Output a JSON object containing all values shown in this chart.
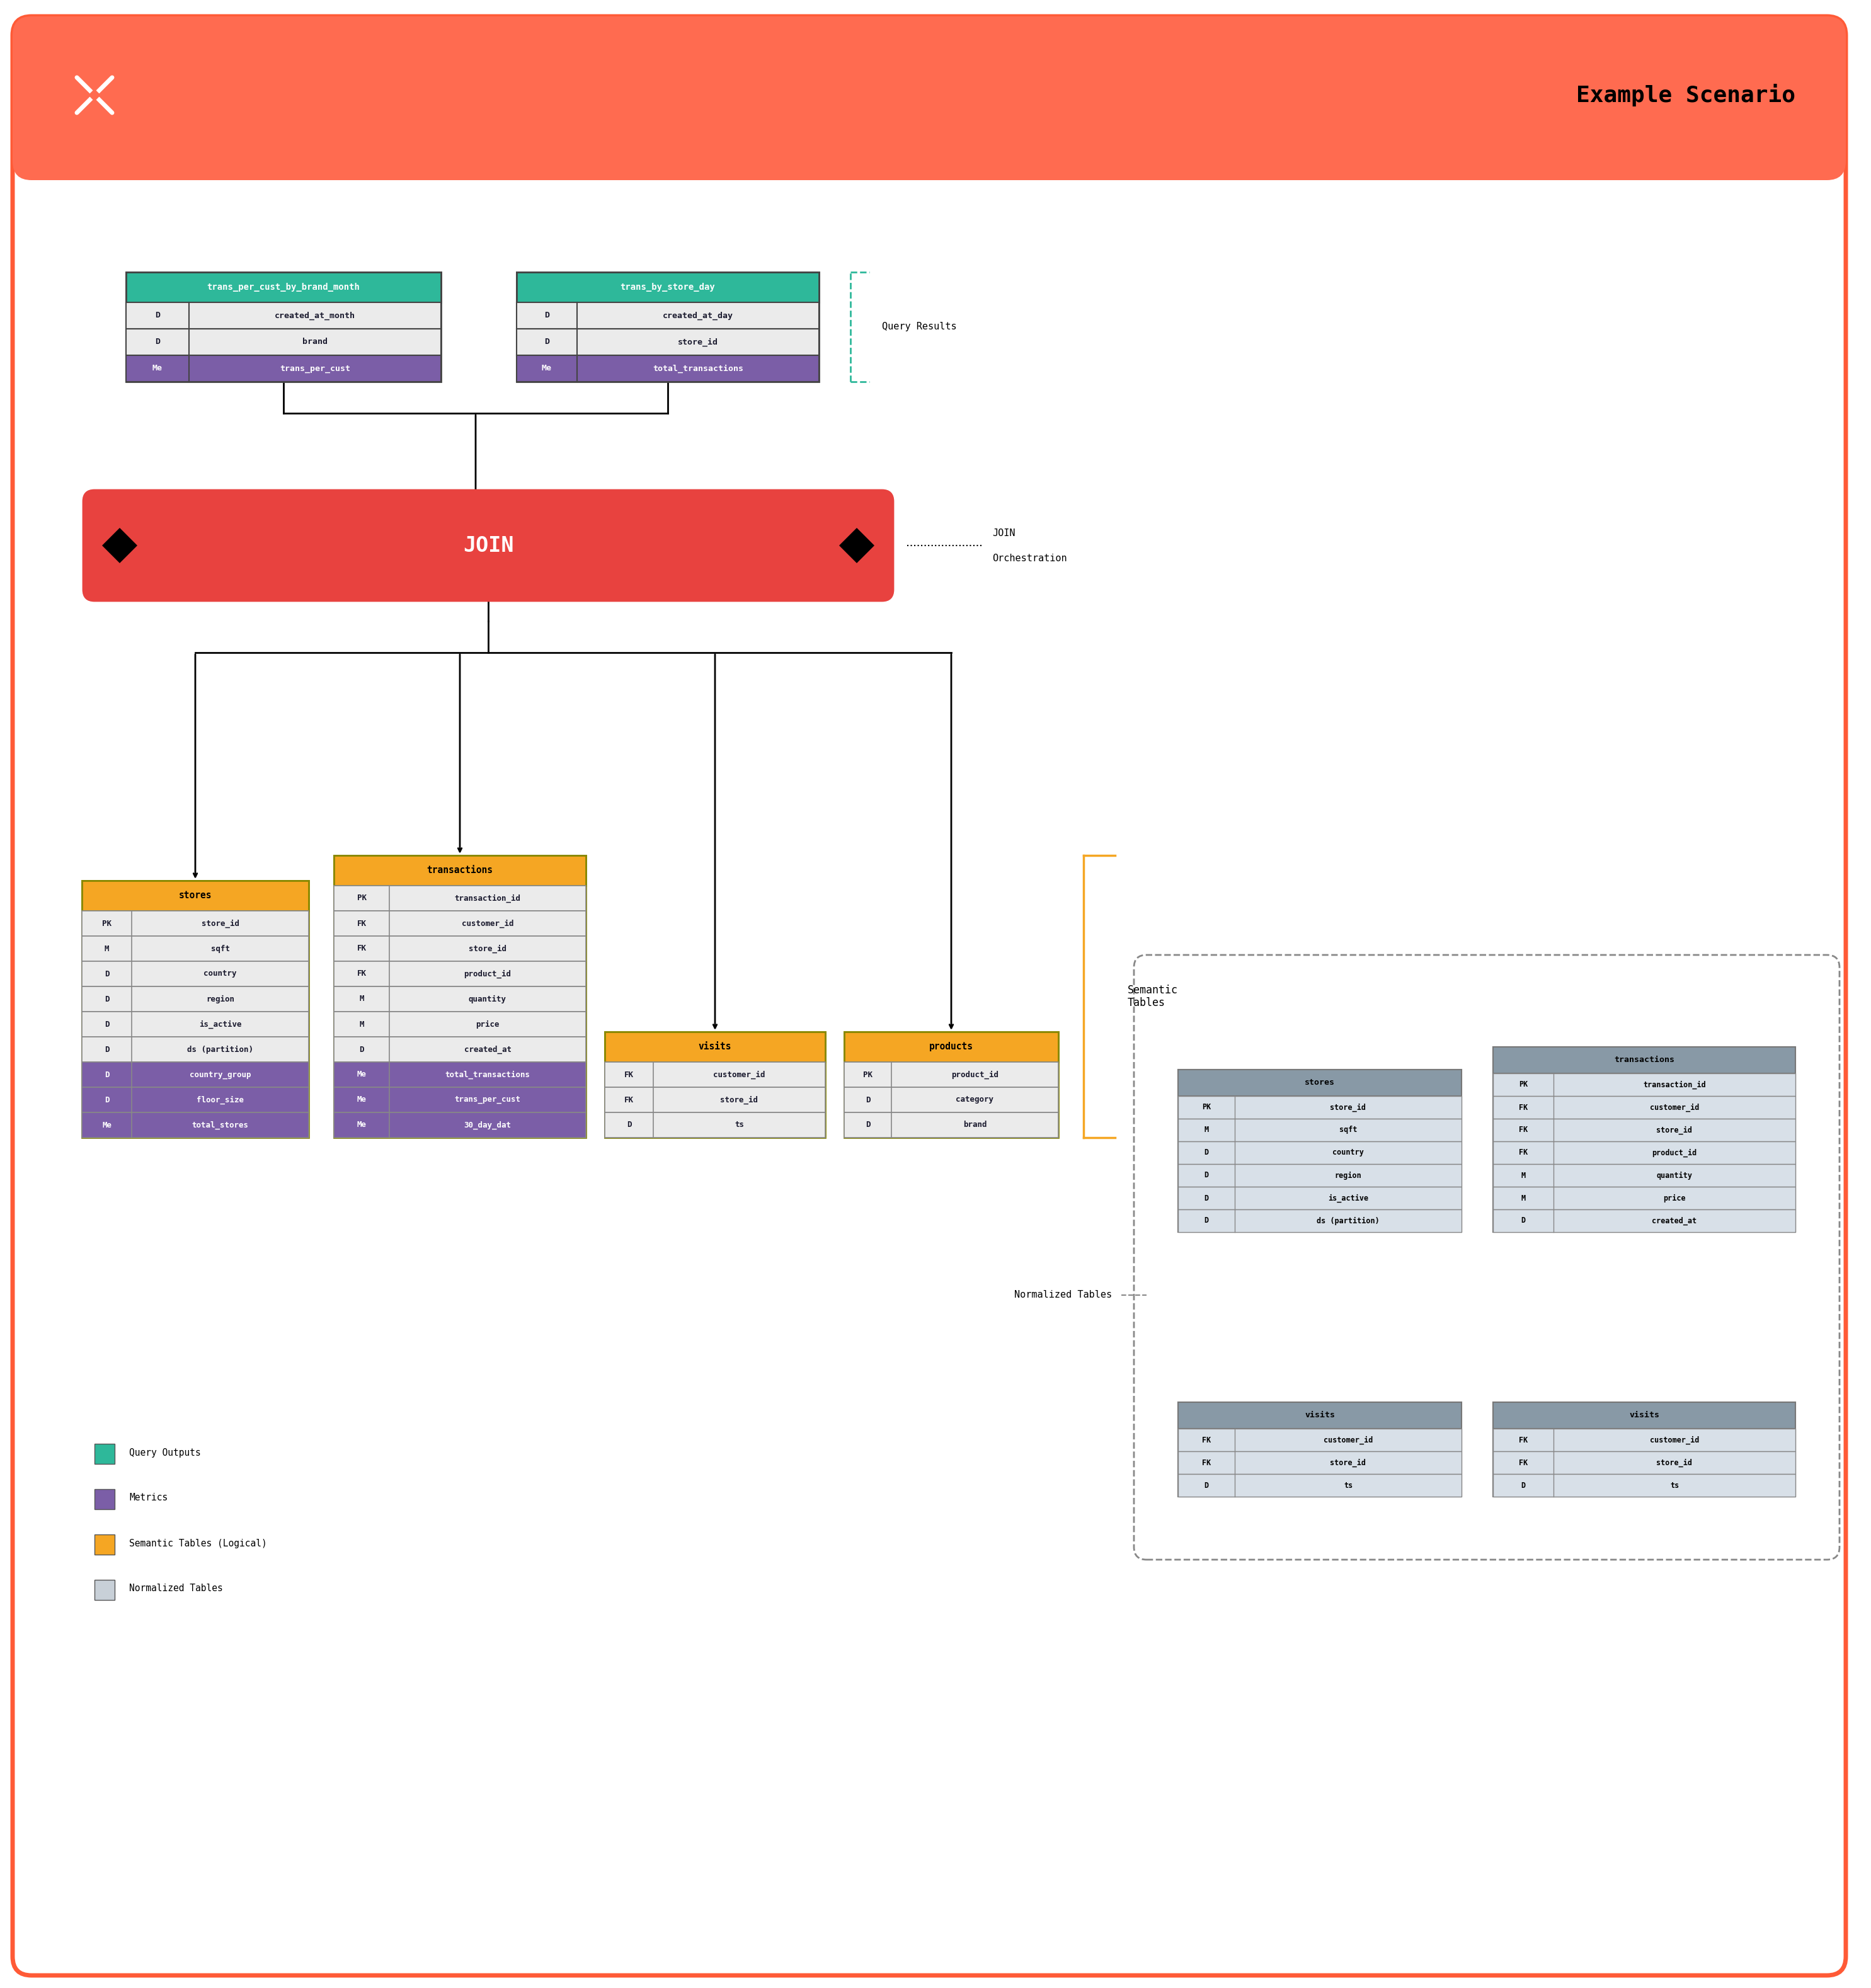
{
  "bg_color": "#ffffff",
  "outer_border_color": "#FF5A36",
  "header_color": "#FF6B50",
  "title_text": "Example Scenario",
  "colors": {
    "teal": "#2EB89A",
    "purple": "#7B5EA7",
    "yellow_orange": "#F5A623",
    "gray_cell": "#EBEBEB",
    "white": "#ffffff",
    "black": "#1a1a2e",
    "red_join": "#E8423F",
    "gray_norm": "#B0B8C1",
    "gray_norm_header": "#8899A6",
    "gray_norm_cell": "#D8E0E8"
  },
  "legend": [
    {
      "color": "#2EB89A",
      "label": "Query Outputs"
    },
    {
      "color": "#7B5EA7",
      "label": "Metrics"
    },
    {
      "color": "#F5A623",
      "label": "Semantic Tables (Logical)"
    },
    {
      "color": "#C8D0D8",
      "label": "Normalized Tables"
    }
  ]
}
